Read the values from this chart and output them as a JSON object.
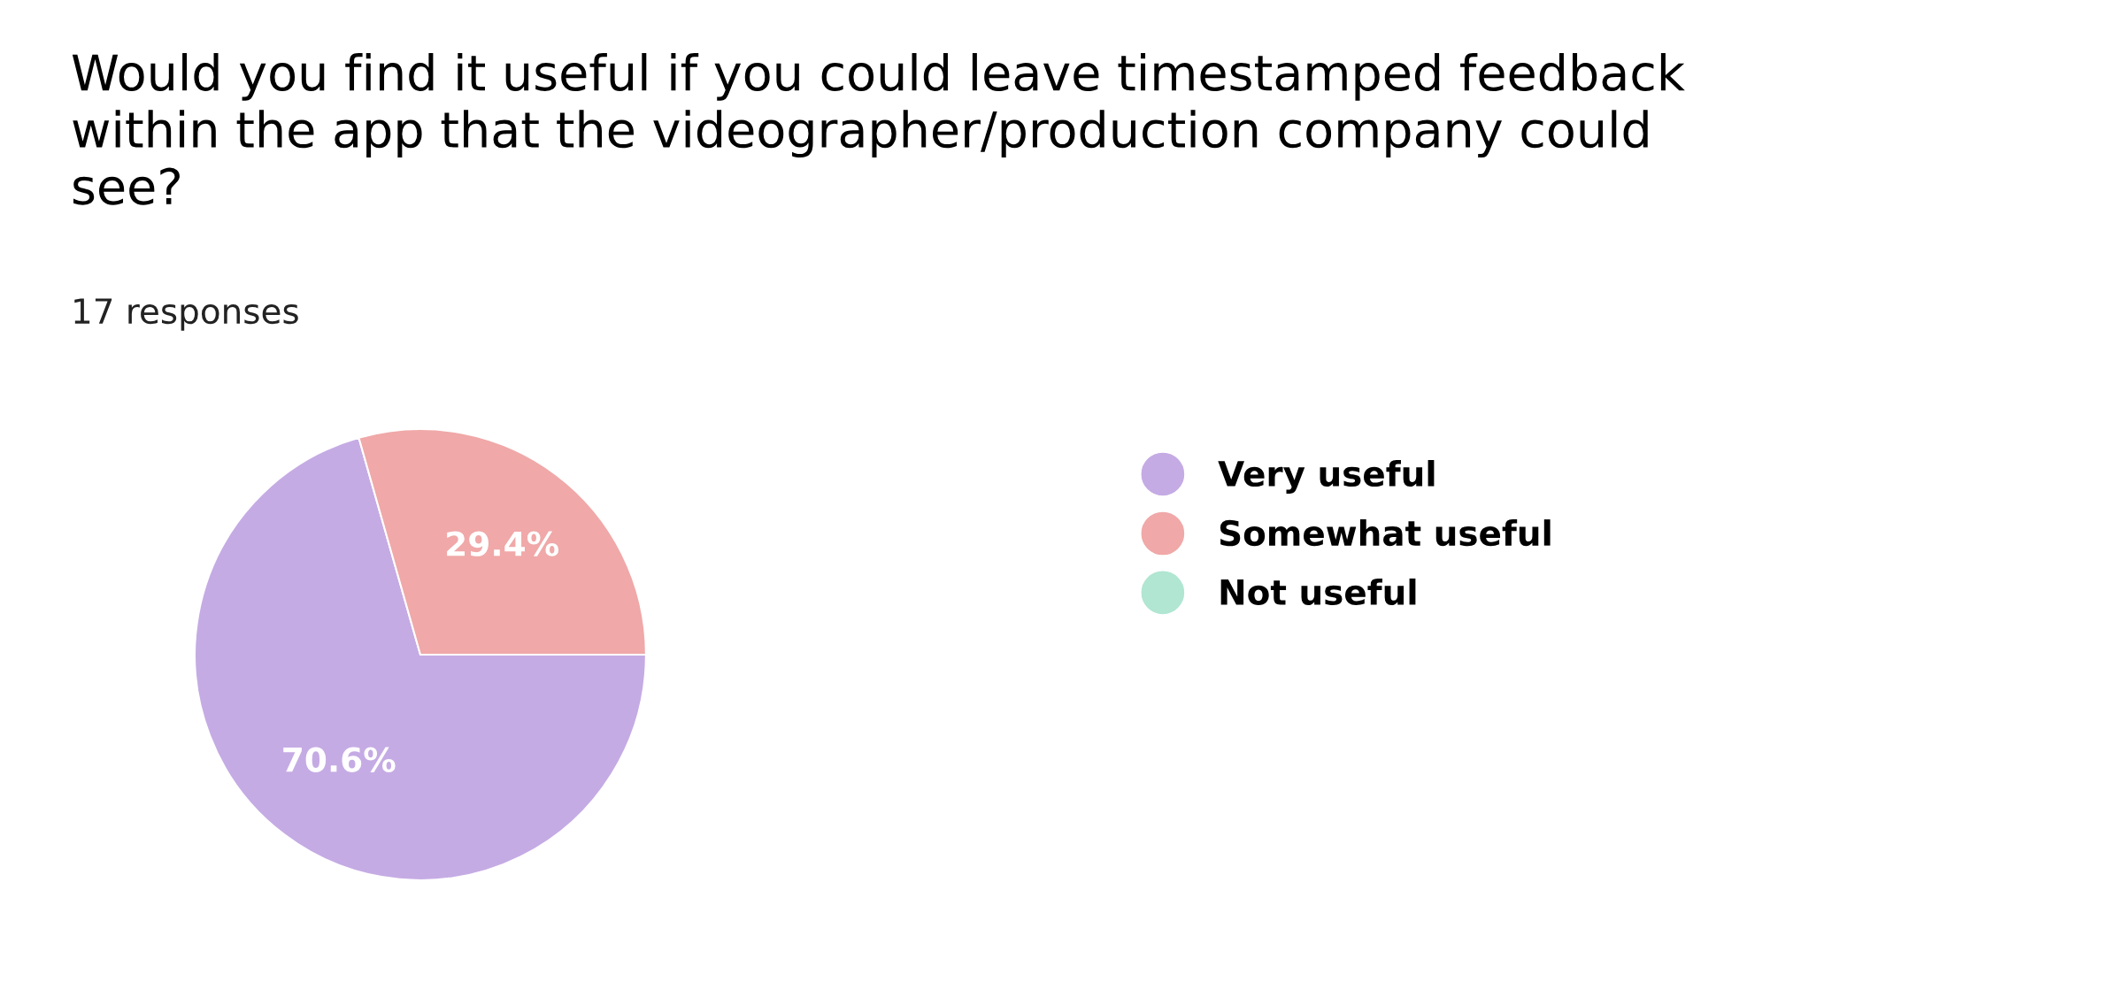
{
  "chart_data": {
    "type": "pie",
    "title": "Would you find it useful if you could leave timestamped feedback\nwithin the app that the videographer/production company could\nsee?",
    "subtitle": "17 responses",
    "categories": [
      "Very useful",
      "Somewhat useful",
      "Not useful"
    ],
    "values": [
      70.6,
      29.4,
      0
    ],
    "colors": [
      "#c5abe4",
      "#f0a8a8",
      "#b0e6d2"
    ],
    "value_labels": [
      "70.6%",
      "29.4%",
      null
    ],
    "legend": "right"
  }
}
